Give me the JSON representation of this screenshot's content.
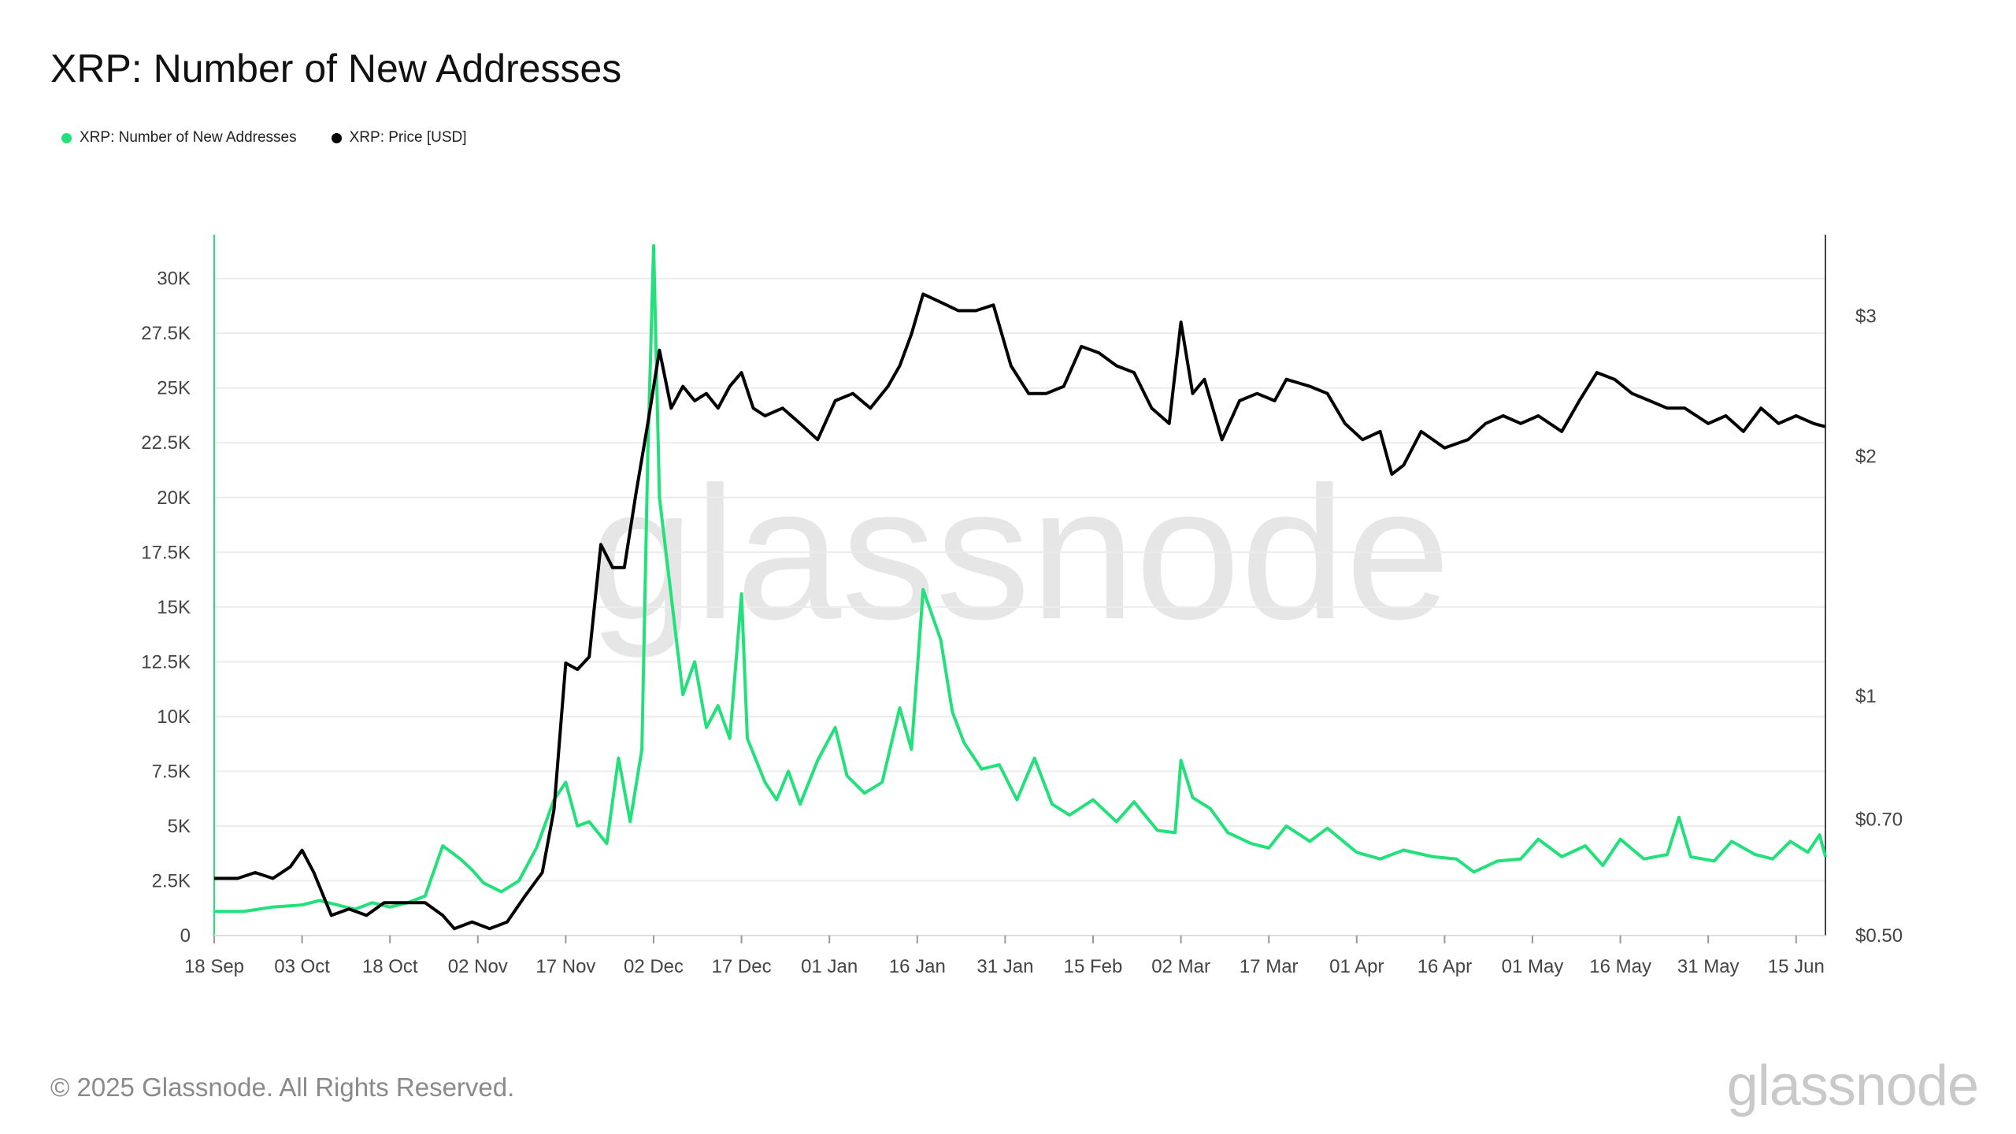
{
  "title": "XRP: Number of New Addresses",
  "footer": "© 2025 Glassnode. All Rights Reserved.",
  "brand": "glassnode",
  "watermark": "glassnode",
  "colors": {
    "new_addresses": "#22e07a",
    "price": "#000000",
    "grid": "#ececec"
  },
  "chart_data": {
    "type": "line",
    "title": "XRP: Number of New Addresses",
    "legend": [
      "XRP: Number of New Addresses",
      "XRP: Price [USD]"
    ],
    "legend_position": "top-left",
    "grid": true,
    "x_tick_labels": [
      "18 Sep",
      "03 Oct",
      "18 Oct",
      "02 Nov",
      "17 Nov",
      "02 Dec",
      "17 Dec",
      "01 Jan",
      "16 Jan",
      "31 Jan",
      "15 Feb",
      "02 Mar",
      "17 Mar",
      "01 Apr",
      "16 Apr",
      "01 May",
      "16 May",
      "31 May",
      "15 Jun"
    ],
    "x_range": [
      "2024-09-18",
      "2025-06-20"
    ],
    "y_left": {
      "label": "",
      "range": [
        0,
        32000
      ],
      "ticks": [
        0,
        2500,
        5000,
        7500,
        10000,
        12500,
        15000,
        17500,
        20000,
        22500,
        25000,
        27500,
        30000
      ],
      "tick_labels": [
        "0",
        "2.5K",
        "5K",
        "7.5K",
        "10K",
        "12.5K",
        "15K",
        "17.5K",
        "20K",
        "22.5K",
        "25K",
        "27.5K",
        "30K"
      ]
    },
    "y_right": {
      "label": "",
      "scale": "log",
      "range": [
        0.5,
        3.8
      ],
      "ticks": [
        0.5,
        0.7,
        1,
        2,
        3
      ],
      "tick_labels": [
        "$0.50",
        "$0.70",
        "$1",
        "$2",
        "$3"
      ]
    },
    "series": [
      {
        "name": "XRP: Number of New Addresses",
        "axis": "left",
        "points": [
          [
            "2024-09-18",
            1100
          ],
          [
            "2024-09-23",
            1100
          ],
          [
            "2024-09-28",
            1300
          ],
          [
            "2024-10-03",
            1400
          ],
          [
            "2024-10-06",
            1600
          ],
          [
            "2024-10-09",
            1400
          ],
          [
            "2024-10-12",
            1200
          ],
          [
            "2024-10-15",
            1500
          ],
          [
            "2024-10-18",
            1300
          ],
          [
            "2024-10-21",
            1500
          ],
          [
            "2024-10-24",
            1800
          ],
          [
            "2024-10-27",
            4100
          ],
          [
            "2024-10-30",
            3500
          ],
          [
            "2024-11-01",
            3000
          ],
          [
            "2024-11-03",
            2400
          ],
          [
            "2024-11-06",
            2000
          ],
          [
            "2024-11-09",
            2500
          ],
          [
            "2024-11-12",
            4000
          ],
          [
            "2024-11-15",
            6200
          ],
          [
            "2024-11-17",
            7000
          ],
          [
            "2024-11-19",
            5000
          ],
          [
            "2024-11-21",
            5200
          ],
          [
            "2024-11-24",
            4200
          ],
          [
            "2024-11-26",
            8100
          ],
          [
            "2024-11-28",
            5200
          ],
          [
            "2024-11-30",
            8500
          ],
          [
            "2024-12-01",
            22000
          ],
          [
            "2024-12-02",
            31500
          ],
          [
            "2024-12-03",
            20000
          ],
          [
            "2024-12-05",
            15500
          ],
          [
            "2024-12-07",
            11000
          ],
          [
            "2024-12-09",
            12500
          ],
          [
            "2024-12-11",
            9500
          ],
          [
            "2024-12-13",
            10500
          ],
          [
            "2024-12-15",
            9000
          ],
          [
            "2024-12-17",
            15600
          ],
          [
            "2024-12-18",
            9000
          ],
          [
            "2024-12-21",
            7000
          ],
          [
            "2024-12-23",
            6200
          ],
          [
            "2024-12-25",
            7500
          ],
          [
            "2024-12-27",
            6000
          ],
          [
            "2024-12-30",
            8000
          ],
          [
            "2025-01-02",
            9500
          ],
          [
            "2025-01-04",
            7300
          ],
          [
            "2025-01-07",
            6500
          ],
          [
            "2025-01-10",
            7000
          ],
          [
            "2025-01-13",
            10400
          ],
          [
            "2025-01-15",
            8500
          ],
          [
            "2025-01-17",
            15800
          ],
          [
            "2025-01-20",
            13500
          ],
          [
            "2025-01-22",
            10200
          ],
          [
            "2025-01-24",
            8800
          ],
          [
            "2025-01-27",
            7600
          ],
          [
            "2025-01-30",
            7800
          ],
          [
            "2025-02-02",
            6200
          ],
          [
            "2025-02-05",
            8100
          ],
          [
            "2025-02-08",
            6000
          ],
          [
            "2025-02-11",
            5500
          ],
          [
            "2025-02-15",
            6200
          ],
          [
            "2025-02-19",
            5200
          ],
          [
            "2025-02-22",
            6100
          ],
          [
            "2025-02-26",
            4800
          ],
          [
            "2025-03-01",
            4700
          ],
          [
            "2025-03-02",
            8000
          ],
          [
            "2025-03-04",
            6300
          ],
          [
            "2025-03-07",
            5800
          ],
          [
            "2025-03-10",
            4700
          ],
          [
            "2025-03-14",
            4200
          ],
          [
            "2025-03-17",
            4000
          ],
          [
            "2025-03-20",
            5000
          ],
          [
            "2025-03-24",
            4300
          ],
          [
            "2025-03-27",
            4900
          ],
          [
            "2025-04-01",
            3800
          ],
          [
            "2025-04-05",
            3500
          ],
          [
            "2025-04-09",
            3900
          ],
          [
            "2025-04-14",
            3600
          ],
          [
            "2025-04-18",
            3500
          ],
          [
            "2025-04-21",
            2900
          ],
          [
            "2025-04-25",
            3400
          ],
          [
            "2025-04-29",
            3500
          ],
          [
            "2025-05-02",
            4400
          ],
          [
            "2025-05-06",
            3600
          ],
          [
            "2025-05-10",
            4100
          ],
          [
            "2025-05-13",
            3200
          ],
          [
            "2025-05-16",
            4400
          ],
          [
            "2025-05-20",
            3500
          ],
          [
            "2025-05-24",
            3700
          ],
          [
            "2025-05-26",
            5400
          ],
          [
            "2025-05-28",
            3600
          ],
          [
            "2025-06-01",
            3400
          ],
          [
            "2025-06-04",
            4300
          ],
          [
            "2025-06-08",
            3700
          ],
          [
            "2025-06-11",
            3500
          ],
          [
            "2025-06-14",
            4300
          ],
          [
            "2025-06-17",
            3800
          ],
          [
            "2025-06-19",
            4600
          ],
          [
            "2025-06-20",
            3600
          ]
        ]
      },
      {
        "name": "XRP: Price [USD]",
        "axis": "right",
        "points": [
          [
            "2024-09-18",
            0.59
          ],
          [
            "2024-09-22",
            0.59
          ],
          [
            "2024-09-25",
            0.6
          ],
          [
            "2024-09-28",
            0.59
          ],
          [
            "2024-10-01",
            0.61
          ],
          [
            "2024-10-03",
            0.64
          ],
          [
            "2024-10-05",
            0.6
          ],
          [
            "2024-10-08",
            0.53
          ],
          [
            "2024-10-11",
            0.54
          ],
          [
            "2024-10-14",
            0.53
          ],
          [
            "2024-10-17",
            0.55
          ],
          [
            "2024-10-21",
            0.55
          ],
          [
            "2024-10-24",
            0.55
          ],
          [
            "2024-10-27",
            0.53
          ],
          [
            "2024-10-29",
            0.51
          ],
          [
            "2024-11-01",
            0.52
          ],
          [
            "2024-11-04",
            0.51
          ],
          [
            "2024-11-07",
            0.52
          ],
          [
            "2024-11-10",
            0.56
          ],
          [
            "2024-11-13",
            0.6
          ],
          [
            "2024-11-15",
            0.72
          ],
          [
            "2024-11-17",
            1.1
          ],
          [
            "2024-11-19",
            1.08
          ],
          [
            "2024-11-21",
            1.12
          ],
          [
            "2024-11-23",
            1.55
          ],
          [
            "2024-11-25",
            1.45
          ],
          [
            "2024-11-27",
            1.45
          ],
          [
            "2024-11-29",
            1.8
          ],
          [
            "2024-12-01",
            2.2
          ],
          [
            "2024-12-03",
            2.72
          ],
          [
            "2024-12-05",
            2.3
          ],
          [
            "2024-12-07",
            2.45
          ],
          [
            "2024-12-09",
            2.35
          ],
          [
            "2024-12-11",
            2.4
          ],
          [
            "2024-12-13",
            2.3
          ],
          [
            "2024-12-15",
            2.45
          ],
          [
            "2024-12-17",
            2.55
          ],
          [
            "2024-12-19",
            2.3
          ],
          [
            "2024-12-21",
            2.25
          ],
          [
            "2024-12-24",
            2.3
          ],
          [
            "2024-12-27",
            2.2
          ],
          [
            "2024-12-30",
            2.1
          ],
          [
            "2025-01-02",
            2.35
          ],
          [
            "2025-01-05",
            2.4
          ],
          [
            "2025-01-08",
            2.3
          ],
          [
            "2025-01-11",
            2.45
          ],
          [
            "2025-01-13",
            2.6
          ],
          [
            "2025-01-15",
            2.85
          ],
          [
            "2025-01-17",
            3.2
          ],
          [
            "2025-01-19",
            3.15
          ],
          [
            "2025-01-21",
            3.1
          ],
          [
            "2025-01-23",
            3.05
          ],
          [
            "2025-01-26",
            3.05
          ],
          [
            "2025-01-29",
            3.1
          ],
          [
            "2025-02-01",
            2.6
          ],
          [
            "2025-02-04",
            2.4
          ],
          [
            "2025-02-07",
            2.4
          ],
          [
            "2025-02-10",
            2.45
          ],
          [
            "2025-02-13",
            2.75
          ],
          [
            "2025-02-16",
            2.7
          ],
          [
            "2025-02-19",
            2.6
          ],
          [
            "2025-02-22",
            2.55
          ],
          [
            "2025-02-25",
            2.3
          ],
          [
            "2025-02-28",
            2.2
          ],
          [
            "2025-03-02",
            2.95
          ],
          [
            "2025-03-04",
            2.4
          ],
          [
            "2025-03-06",
            2.5
          ],
          [
            "2025-03-09",
            2.1
          ],
          [
            "2025-03-12",
            2.35
          ],
          [
            "2025-03-15",
            2.4
          ],
          [
            "2025-03-18",
            2.35
          ],
          [
            "2025-03-20",
            2.5
          ],
          [
            "2025-03-24",
            2.45
          ],
          [
            "2025-03-27",
            2.4
          ],
          [
            "2025-03-30",
            2.2
          ],
          [
            "2025-04-02",
            2.1
          ],
          [
            "2025-04-05",
            2.15
          ],
          [
            "2025-04-07",
            1.9
          ],
          [
            "2025-04-09",
            1.95
          ],
          [
            "2025-04-12",
            2.15
          ],
          [
            "2025-04-16",
            2.05
          ],
          [
            "2025-04-20",
            2.1
          ],
          [
            "2025-04-23",
            2.2
          ],
          [
            "2025-04-26",
            2.25
          ],
          [
            "2025-04-29",
            2.2
          ],
          [
            "2025-05-02",
            2.25
          ],
          [
            "2025-05-06",
            2.15
          ],
          [
            "2025-05-09",
            2.35
          ],
          [
            "2025-05-12",
            2.55
          ],
          [
            "2025-05-15",
            2.5
          ],
          [
            "2025-05-18",
            2.4
          ],
          [
            "2025-05-21",
            2.35
          ],
          [
            "2025-05-24",
            2.3
          ],
          [
            "2025-05-27",
            2.3
          ],
          [
            "2025-05-31",
            2.2
          ],
          [
            "2025-06-03",
            2.25
          ],
          [
            "2025-06-06",
            2.15
          ],
          [
            "2025-06-09",
            2.3
          ],
          [
            "2025-06-12",
            2.2
          ],
          [
            "2025-06-15",
            2.25
          ],
          [
            "2025-06-18",
            2.2
          ],
          [
            "2025-06-20",
            2.18
          ]
        ]
      }
    ]
  }
}
